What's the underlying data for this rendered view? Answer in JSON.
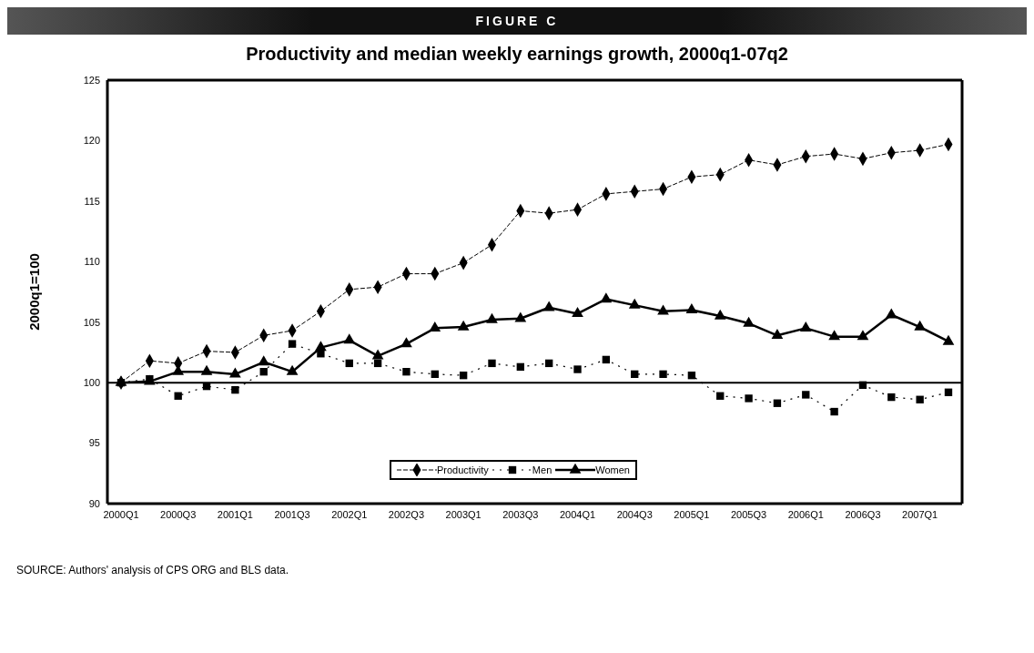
{
  "chart_data": {
    "type": "line",
    "title": "Productivity and median weekly earnings growth, 2000q1-07q2",
    "ylabel": "2000q1=100",
    "annotations": [
      "FIGURE C",
      "SOURCE: Authors' analysis of CPS ORG and BLS data."
    ],
    "categories": [
      "2000Q1",
      null,
      "2000Q3",
      null,
      "2001Q1",
      null,
      "2001Q3",
      null,
      "2002Q1",
      null,
      "2002Q3",
      null,
      "2003Q1",
      null,
      "2003Q3",
      null,
      "2004Q1",
      null,
      "2004Q3",
      null,
      "2005Q1",
      null,
      "2005Q3",
      null,
      "2006Q1",
      null,
      "2006Q3",
      null,
      "2007Q1",
      null
    ],
    "series": [
      {
        "name": "Productivity",
        "color": "#000000",
        "marker": "diamond",
        "line_style": "dashed",
        "values": [
          100,
          101.8,
          101.6,
          102.6,
          102.5,
          103.9,
          104.3,
          105.9,
          107.7,
          107.9,
          109.0,
          109.0,
          109.9,
          111.4,
          114.2,
          114.0,
          114.3,
          115.6,
          115.8,
          116.0,
          117.0,
          117.2,
          118.4,
          118.0,
          118.7,
          118.9,
          118.5,
          119.0,
          119.2,
          119.7
        ]
      },
      {
        "name": "Men",
        "color": "#000000",
        "marker": "square",
        "line_style": "dotted",
        "values": [
          100,
          100.3,
          98.9,
          99.7,
          99.4,
          100.9,
          103.2,
          102.4,
          101.6,
          101.6,
          100.9,
          100.7,
          100.6,
          101.6,
          101.3,
          101.6,
          101.1,
          101.9,
          100.7,
          100.7,
          100.6,
          98.9,
          98.7,
          98.3,
          99.0,
          97.6,
          99.8,
          98.8,
          98.6,
          99.2
        ]
      },
      {
        "name": "Women",
        "color": "#000000",
        "marker": "triangle",
        "line_style": "solid",
        "values": [
          100,
          100.1,
          100.9,
          100.9,
          100.7,
          101.7,
          100.9,
          102.9,
          103.5,
          102.2,
          103.2,
          104.5,
          104.6,
          105.2,
          105.3,
          106.2,
          105.7,
          106.9,
          106.4,
          105.9,
          106.0,
          105.5,
          104.9,
          103.9,
          104.5,
          103.8,
          103.8,
          105.6,
          104.6,
          103.4
        ]
      }
    ],
    "ylim": [
      90,
      125
    ],
    "yticks": [
      90,
      95,
      100,
      105,
      110,
      115,
      120,
      125
    ],
    "ref_lines": [
      {
        "axis": "y",
        "value": 100,
        "color": "#000000"
      }
    ],
    "legend": "bottom"
  }
}
